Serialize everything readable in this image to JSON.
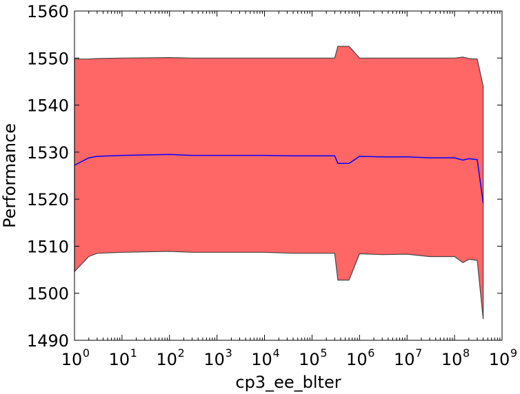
{
  "chart_data": {
    "type": "area",
    "xlabel": "cp3_ee_blter",
    "ylabel": "Performance",
    "xscale": "log",
    "xlim": [
      1,
      1000000000
    ],
    "ylim": [
      1490,
      1560
    ],
    "yticks": [
      1490,
      1500,
      1510,
      1520,
      1530,
      1540,
      1550,
      1560
    ],
    "xtick_exponents": [
      "0",
      "1",
      "2",
      "3",
      "4",
      "5",
      "6",
      "7",
      "8",
      "9"
    ],
    "xtick_base": "10",
    "grid": false,
    "legend": "none",
    "series": [
      {
        "kind": "band",
        "color": "#ff6666",
        "edge_color": "#444444",
        "x": [
          1,
          2,
          3,
          10,
          100,
          300,
          1000,
          10000,
          40000,
          300000,
          350000,
          600000,
          1000000,
          3000000,
          10000000,
          30000000,
          100000000,
          150000000,
          200000000,
          300000000,
          400000000
        ],
        "lower": [
          1504.6,
          1507.8,
          1508.5,
          1508.7,
          1508.9,
          1508.7,
          1508.7,
          1508.7,
          1508.5,
          1508.5,
          1502.8,
          1502.8,
          1508.4,
          1508.2,
          1508.3,
          1507.8,
          1507.8,
          1506.5,
          1507.2,
          1507.0,
          1494.5
        ],
        "upper": [
          1549.8,
          1549.8,
          1549.9,
          1550.0,
          1550.1,
          1550.0,
          1550.0,
          1550.0,
          1550.0,
          1550.0,
          1552.5,
          1552.5,
          1550.0,
          1550.0,
          1550.0,
          1550.0,
          1550.0,
          1550.2,
          1549.9,
          1549.8,
          1544.0
        ]
      },
      {
        "kind": "line",
        "color": "#0000ff",
        "x": [
          1,
          2,
          3,
          10,
          100,
          300,
          1000,
          10000,
          40000,
          300000,
          350000,
          600000,
          1000000,
          3000000,
          10000000,
          30000000,
          100000000,
          150000000,
          200000000,
          300000000,
          400000000
        ],
        "y": [
          1527.2,
          1528.8,
          1529.1,
          1529.3,
          1529.5,
          1529.3,
          1529.3,
          1529.3,
          1529.2,
          1529.2,
          1527.6,
          1527.6,
          1529.1,
          1529.0,
          1529.0,
          1528.8,
          1528.8,
          1528.3,
          1528.6,
          1528.4,
          1519.2
        ]
      }
    ]
  }
}
